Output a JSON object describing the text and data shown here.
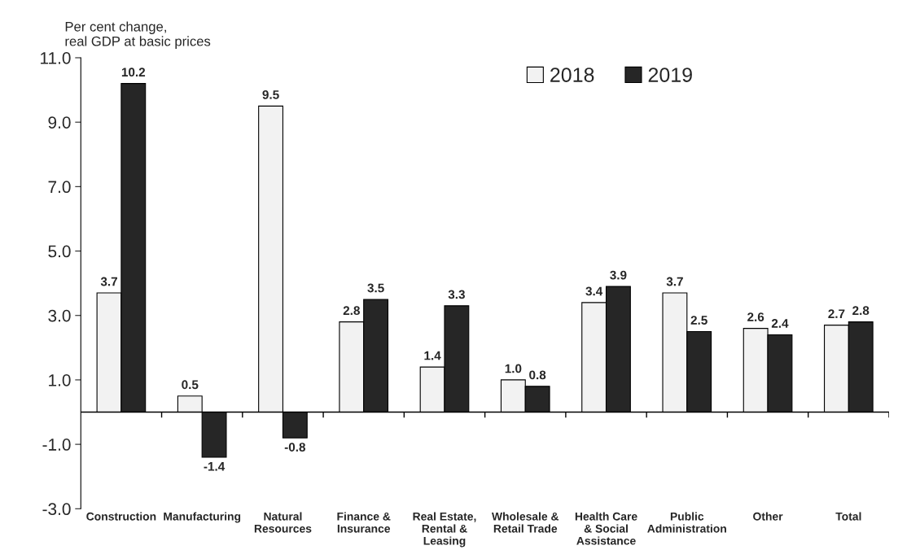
{
  "chart_data": {
    "type": "bar",
    "ylabel": "Per cent change,\nreal GDP at basic prices",
    "categories": [
      "Construction",
      "Manufacturing",
      "Natural\nResources",
      "Finance &\nInsurance",
      "Real Estate,\nRental &\nLeasing",
      "Wholesale &\nRetail Trade",
      "Health Care\n& Social\nAssistance",
      "Public\nAdministration",
      "Other",
      "Total"
    ],
    "series": [
      {
        "name": "2018",
        "color": "#f2f2f2",
        "values": [
          3.7,
          0.5,
          9.5,
          2.8,
          1.4,
          1.0,
          3.4,
          3.7,
          2.6,
          2.7
        ],
        "value_labels": [
          "3.7",
          "0.5",
          "9.5",
          "2.8",
          "1.4",
          "1.0",
          "3.4",
          "3.7",
          "2.6",
          "2.7"
        ]
      },
      {
        "name": "2019",
        "color": "#262626",
        "values": [
          10.2,
          -1.4,
          -0.8,
          3.5,
          3.3,
          0.8,
          3.9,
          2.5,
          2.4,
          2.8
        ],
        "value_labels": [
          "10.2",
          "-1.4",
          "-0.8",
          "3.5",
          "3.3",
          "0.8",
          "3.9",
          "2.5",
          "2.4",
          "2.8"
        ]
      }
    ],
    "ylim": [
      -3,
      11
    ],
    "yticks": [
      {
        "value": -3,
        "label": "-3.0"
      },
      {
        "value": -1,
        "label": "-1.0"
      },
      {
        "value": 1,
        "label": "1.0"
      },
      {
        "value": 3,
        "label": "3.0"
      },
      {
        "value": 5,
        "label": "5.0"
      },
      {
        "value": 7,
        "label": "7.0"
      },
      {
        "value": 9,
        "label": "9.0"
      },
      {
        "value": 11,
        "label": "11.0"
      }
    ],
    "grid": false,
    "legend": "top right"
  }
}
